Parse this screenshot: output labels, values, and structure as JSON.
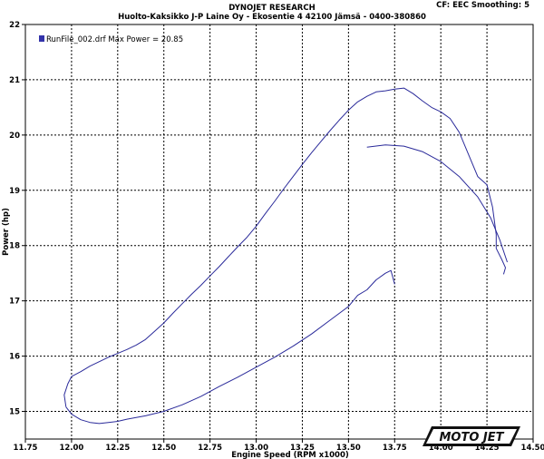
{
  "header": {
    "title": "DYNOJET RESEARCH",
    "subtitle": "Huolto-Kaksikko J-P Laine Oy - Ekosentie 4 42100 Jämsä - 0400-380860",
    "cf": "CF: EEC  Smoothing: 5"
  },
  "logo": {
    "text": "MOTO JET"
  },
  "chart_data": {
    "type": "line",
    "title": "",
    "xlabel": "Engine Speed (RPM x1000)",
    "ylabel": "Power (hp)",
    "xlim": [
      11.75,
      14.5
    ],
    "ylim": [
      14.5,
      22
    ],
    "xticks": [
      "11.75",
      "12.00",
      "12.25",
      "12.50",
      "12.75",
      "13.00",
      "13.25",
      "13.50",
      "13.75",
      "14.00",
      "14.25",
      "14.50"
    ],
    "yticks": [
      "22",
      "21",
      "20",
      "19",
      "18",
      "17",
      "16",
      "15"
    ],
    "grid": true,
    "legend": {
      "position": "top-left",
      "text": "RunFile_002.drf Max Power = 20.85",
      "color": "#3333aa"
    },
    "series": [
      {
        "name": "RunFile_002.drf",
        "segment": "upper",
        "color": "#2a2a9a",
        "points": [
          [
            11.97,
            15.08
          ],
          [
            11.96,
            15.3
          ],
          [
            11.98,
            15.5
          ],
          [
            12.0,
            15.63
          ],
          [
            12.05,
            15.72
          ],
          [
            12.1,
            15.82
          ],
          [
            12.15,
            15.9
          ],
          [
            12.2,
            15.98
          ],
          [
            12.25,
            16.05
          ],
          [
            12.3,
            16.12
          ],
          [
            12.35,
            16.2
          ],
          [
            12.4,
            16.3
          ],
          [
            12.45,
            16.45
          ],
          [
            12.5,
            16.6
          ],
          [
            12.55,
            16.78
          ],
          [
            12.6,
            16.95
          ],
          [
            12.65,
            17.12
          ],
          [
            12.7,
            17.28
          ],
          [
            12.75,
            17.45
          ],
          [
            12.8,
            17.62
          ],
          [
            12.85,
            17.8
          ],
          [
            12.9,
            17.98
          ],
          [
            12.95,
            18.15
          ],
          [
            13.0,
            18.35
          ],
          [
            13.05,
            18.58
          ],
          [
            13.1,
            18.8
          ],
          [
            13.15,
            19.03
          ],
          [
            13.2,
            19.25
          ],
          [
            13.25,
            19.47
          ],
          [
            13.3,
            19.68
          ],
          [
            13.35,
            19.88
          ],
          [
            13.4,
            20.08
          ],
          [
            13.45,
            20.27
          ],
          [
            13.5,
            20.45
          ],
          [
            13.55,
            20.6
          ],
          [
            13.6,
            20.7
          ],
          [
            13.65,
            20.78
          ],
          [
            13.7,
            20.8
          ],
          [
            13.75,
            20.83
          ],
          [
            13.8,
            20.85
          ],
          [
            13.85,
            20.75
          ],
          [
            13.9,
            20.62
          ],
          [
            13.95,
            20.5
          ],
          [
            14.0,
            20.42
          ],
          [
            14.05,
            20.3
          ],
          [
            14.1,
            20.05
          ],
          [
            14.15,
            19.65
          ],
          [
            14.2,
            19.25
          ],
          [
            14.25,
            19.1
          ],
          [
            14.28,
            18.7
          ],
          [
            14.3,
            18.2
          ],
          [
            14.3,
            17.95
          ],
          [
            14.33,
            17.75
          ],
          [
            14.35,
            17.6
          ],
          [
            14.34,
            17.48
          ]
        ]
      },
      {
        "name": "RunFile_002.drf",
        "segment": "lower",
        "color": "#2a2a9a",
        "points": [
          [
            11.97,
            15.08
          ],
          [
            12.0,
            14.95
          ],
          [
            12.05,
            14.85
          ],
          [
            12.1,
            14.8
          ],
          [
            12.15,
            14.78
          ],
          [
            12.2,
            14.8
          ],
          [
            12.25,
            14.82
          ],
          [
            12.3,
            14.86
          ],
          [
            12.4,
            14.92
          ],
          [
            12.5,
            15.0
          ],
          [
            12.6,
            15.12
          ],
          [
            12.7,
            15.27
          ],
          [
            12.8,
            15.45
          ],
          [
            12.9,
            15.62
          ],
          [
            13.0,
            15.8
          ],
          [
            13.1,
            15.98
          ],
          [
            13.2,
            16.18
          ],
          [
            13.3,
            16.4
          ],
          [
            13.4,
            16.65
          ],
          [
            13.5,
            16.9
          ],
          [
            13.55,
            17.1
          ],
          [
            13.6,
            17.2
          ],
          [
            13.65,
            17.38
          ],
          [
            13.7,
            17.5
          ],
          [
            13.73,
            17.55
          ],
          [
            13.75,
            17.3
          ]
        ]
      },
      {
        "name": "RunFile_002.drf",
        "segment": "decel",
        "color": "#2a2a9a",
        "points": [
          [
            13.6,
            19.78
          ],
          [
            13.7,
            19.82
          ],
          [
            13.8,
            19.8
          ],
          [
            13.9,
            19.7
          ],
          [
            14.0,
            19.52
          ],
          [
            14.1,
            19.25
          ],
          [
            14.2,
            18.88
          ],
          [
            14.27,
            18.5
          ],
          [
            14.32,
            18.1
          ],
          [
            14.36,
            17.7
          ]
        ]
      }
    ]
  }
}
